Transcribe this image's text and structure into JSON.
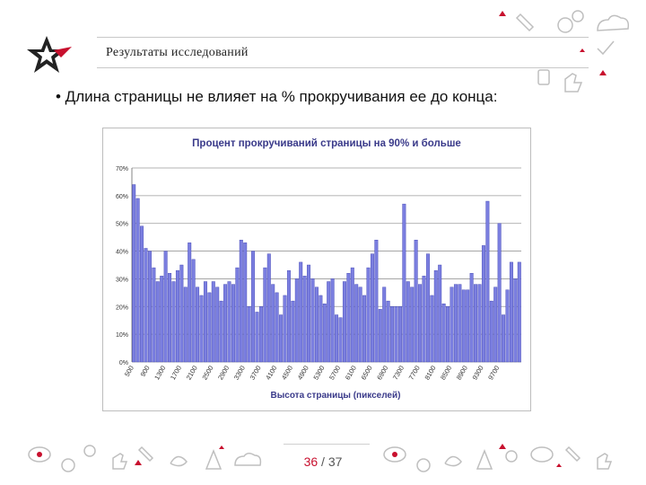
{
  "header": {
    "title": "Результаты исследований"
  },
  "bullet": {
    "text": "• Длина страницы не влияет на % прокручивания ее до конца:"
  },
  "pager": {
    "current": "36",
    "separator": "/",
    "total": "37"
  },
  "colors": {
    "brand": "#c8102e",
    "bar": "#7b7fe0",
    "bar_edge": "#3b3fb0",
    "deco": "#bfbfbf"
  },
  "icons": [
    "star-logo-icon",
    "gear-icon",
    "cloud-icon",
    "pencil-icon",
    "thumbs-up-icon",
    "check-icon",
    "rocket-icon",
    "bird-icon"
  ],
  "chart_data": {
    "type": "bar",
    "title": "Процент прокручиваний страницы на 90% и больше",
    "xlabel": "Высота страницы (пикселей)",
    "ylabel": "",
    "ylim": [
      0,
      70
    ],
    "yticks": [
      "0%",
      "10%",
      "20%",
      "30%",
      "40%",
      "50%",
      "60%",
      "70%"
    ],
    "grid": true,
    "xtick_labels": [
      "500",
      "900",
      "1300",
      "1700",
      "2100",
      "2500",
      "2900",
      "3300",
      "3700",
      "4100",
      "4500",
      "4900",
      "5300",
      "5700",
      "6100",
      "6500",
      "6900",
      "7300",
      "7700",
      "8100",
      "8500",
      "8900",
      "9300",
      "9700"
    ],
    "values": [
      64,
      59,
      49,
      41,
      40,
      34,
      29,
      31,
      40,
      32,
      29,
      33,
      35,
      27,
      43,
      37,
      27,
      24,
      29,
      25,
      29,
      27,
      22,
      28,
      29,
      28,
      34,
      44,
      43,
      20,
      40,
      18,
      20,
      34,
      39,
      28,
      25,
      17,
      24,
      33,
      22,
      30,
      36,
      31,
      35,
      30,
      27,
      24,
      21,
      29,
      30,
      17,
      16,
      29,
      32,
      34,
      28,
      27,
      24,
      34,
      39,
      44,
      19,
      27,
      22,
      20,
      20,
      20,
      57,
      29,
      27,
      44,
      28,
      31,
      39,
      24,
      33,
      35,
      21,
      20,
      27,
      28,
      28,
      26,
      26,
      32,
      28,
      28,
      42,
      58,
      22,
      27,
      50,
      17,
      26,
      36,
      30,
      36
    ],
    "bar_color": "#7b7fe0"
  }
}
